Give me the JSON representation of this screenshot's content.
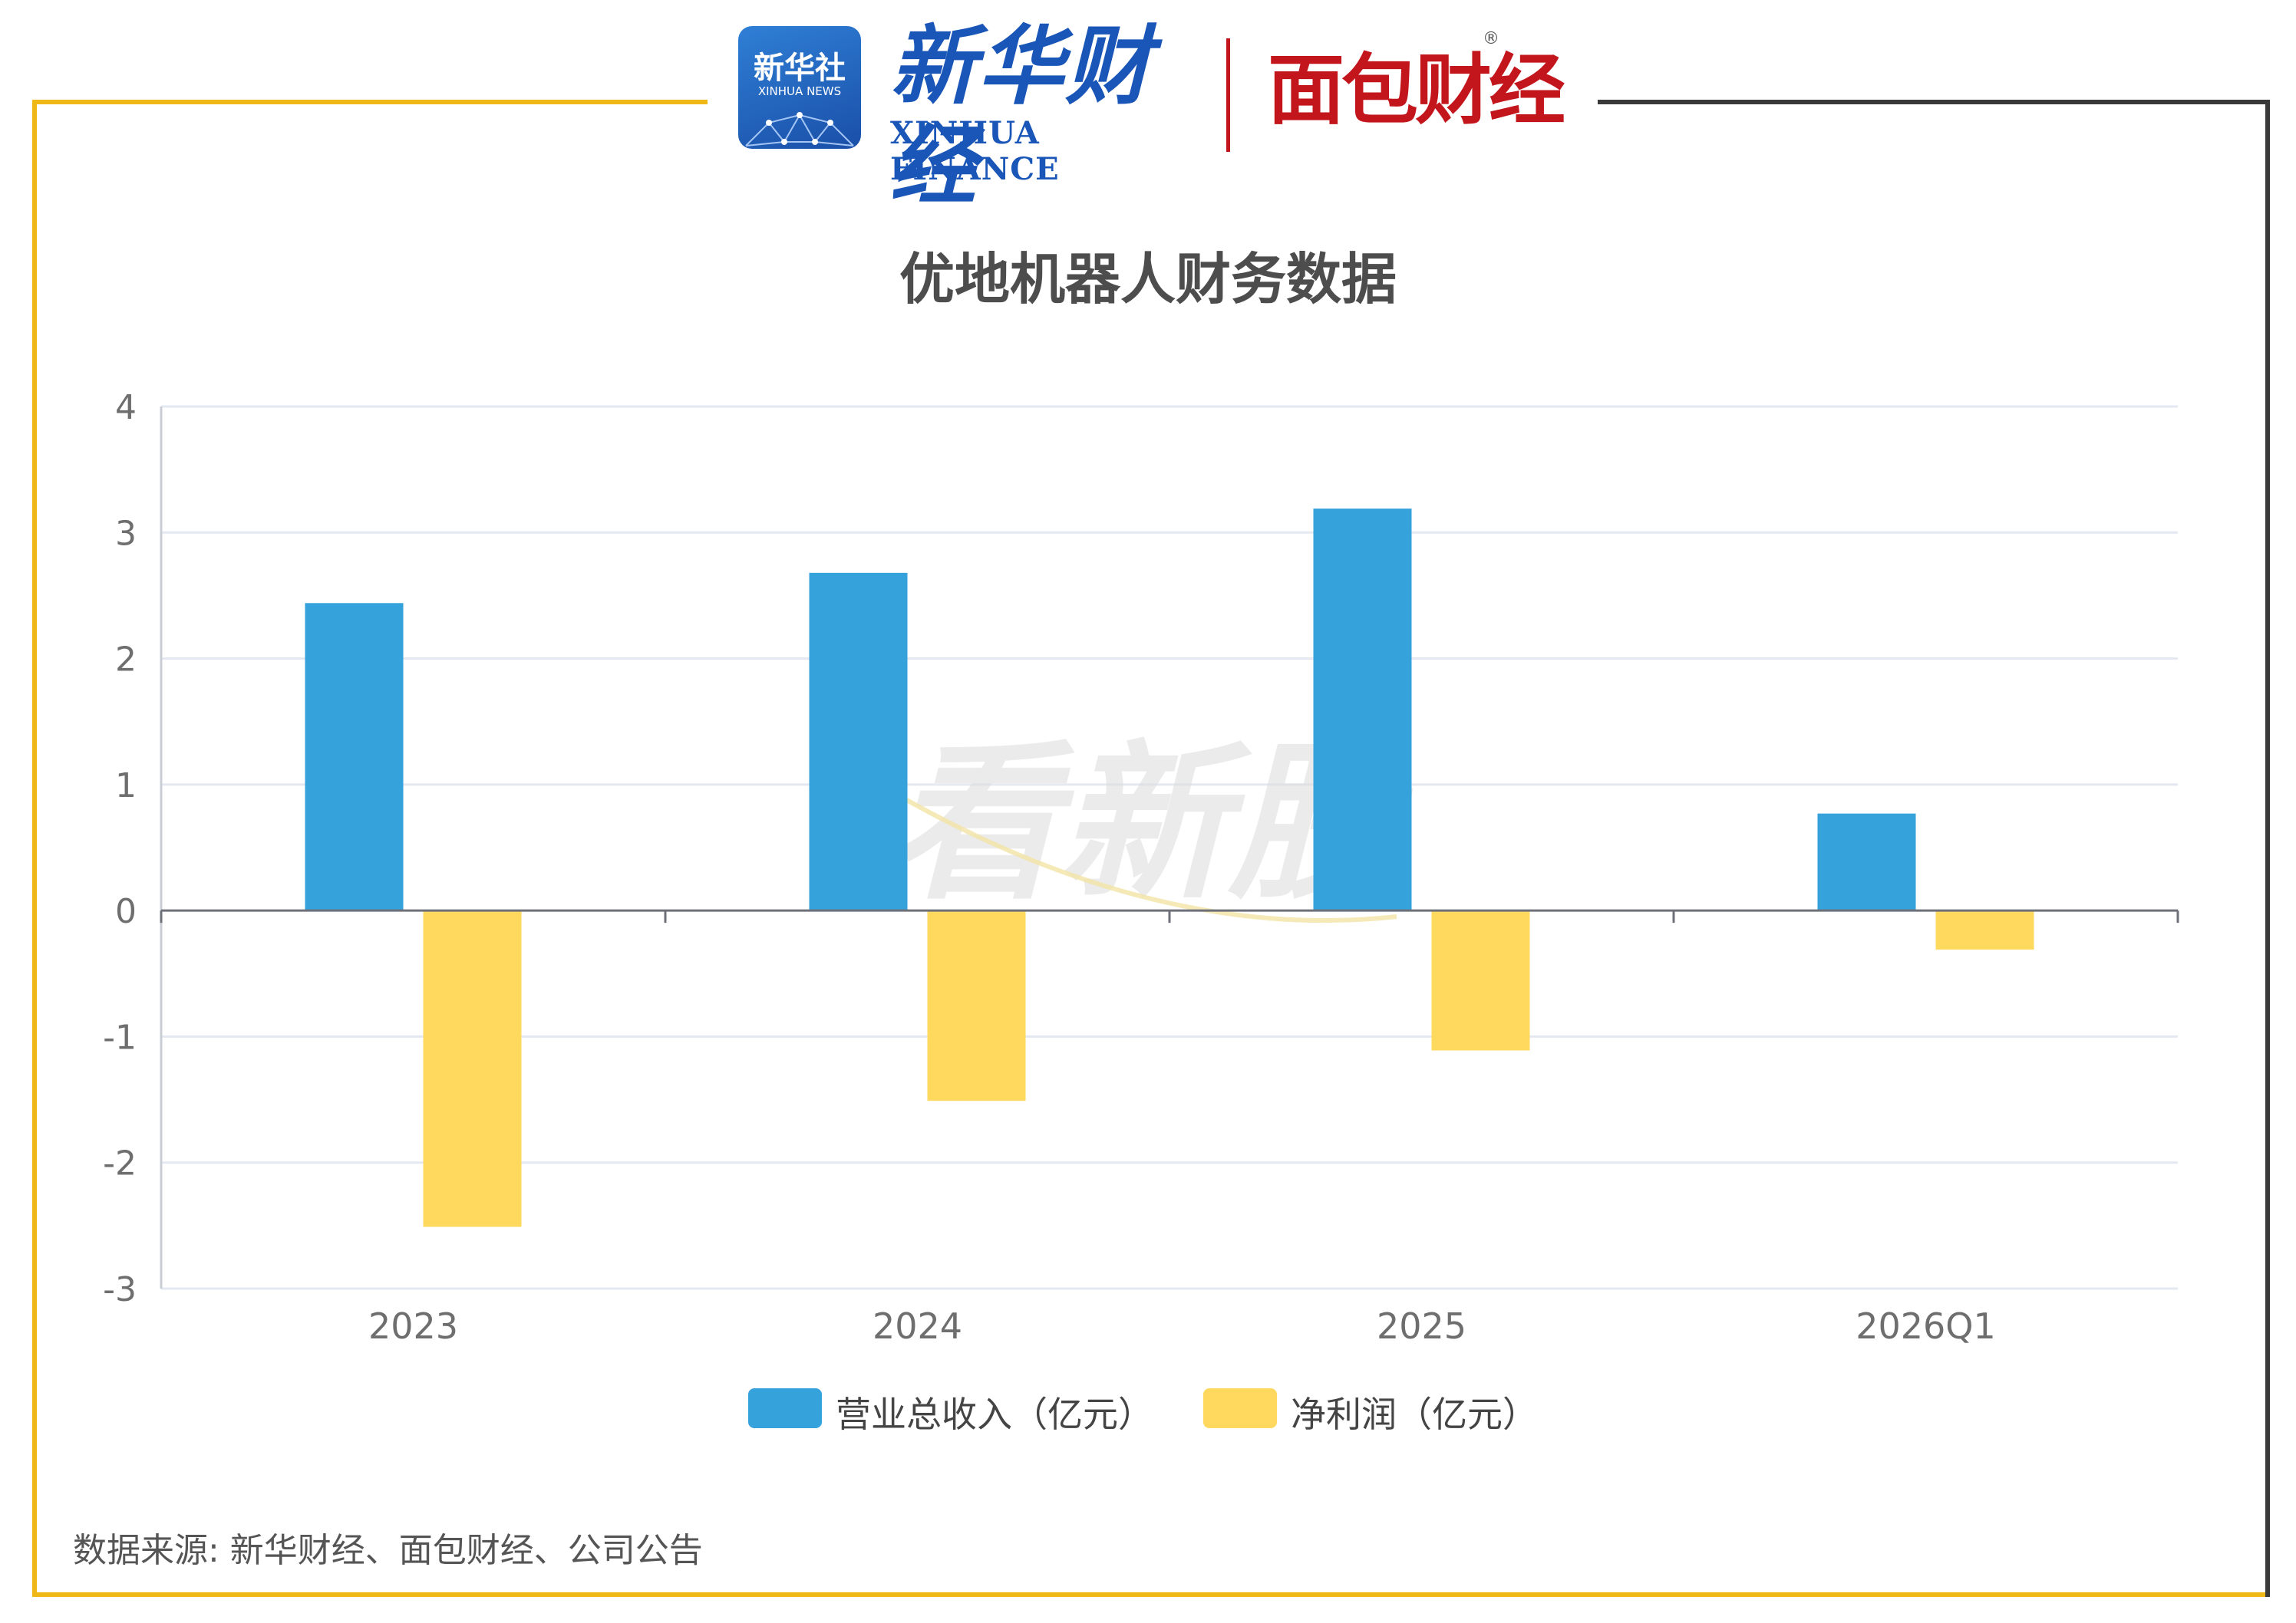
{
  "logos": {
    "xinhua_news_cn": "新华社",
    "xinhua_news_en": "XINHUA NEWS",
    "xinhua_finance_cn": "新华财经",
    "xinhua_finance_en": "XINHUA FINANCE",
    "mianbao_cn": "面包财经",
    "registered_mark": "®"
  },
  "watermark": "看新股",
  "source": "数据来源: 新华财经、面包财经、公司公告",
  "colors": {
    "gold": "#f0b816",
    "dark": "#3a3a3a",
    "blue": "#36a2db",
    "yellow": "#fed95d",
    "grid": "#e3e8f1",
    "axis": "#6e7079"
  },
  "chart_data": {
    "type": "bar",
    "title": "优地机器人财务数据",
    "categories": [
      "2023",
      "2024",
      "2025",
      "2026Q1"
    ],
    "series": [
      {
        "name": "营业总收入（亿元）",
        "color": "#36a2db",
        "values": [
          2.44,
          2.68,
          3.19,
          0.77
        ]
      },
      {
        "name": "净利润（亿元）",
        "color": "#fed95d",
        "values": [
          -2.51,
          -1.51,
          -1.11,
          -0.31
        ]
      }
    ],
    "ylim": [
      -3,
      4
    ],
    "yticks": [
      4,
      3,
      2,
      1,
      0,
      -1,
      -2,
      -3
    ],
    "grid": true,
    "legend": "bottom"
  }
}
